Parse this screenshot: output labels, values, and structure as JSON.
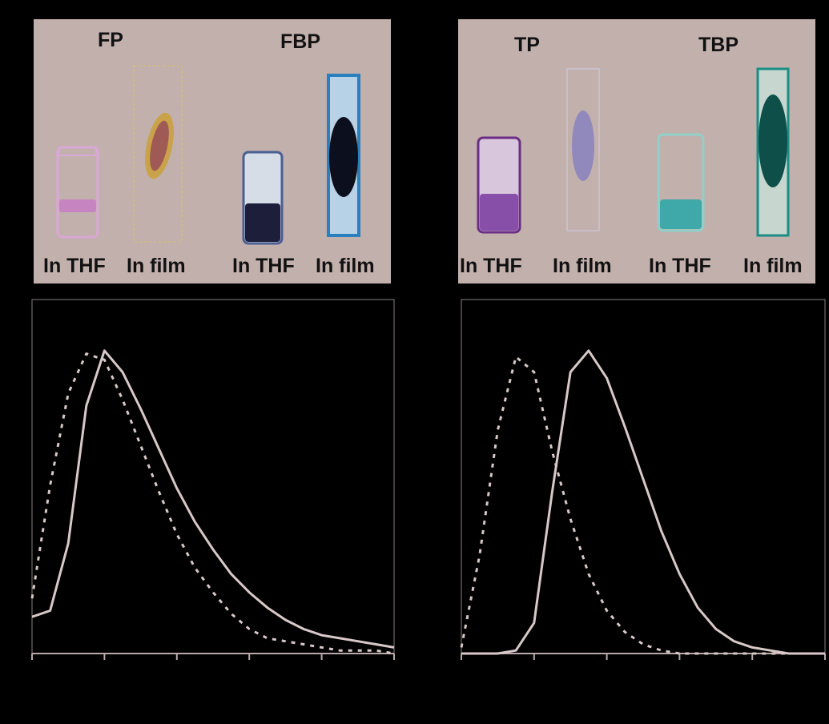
{
  "panels": [
    {
      "id": "left",
      "compounds": [
        "FP",
        "FBP"
      ],
      "captions": [
        "In THF",
        "In film",
        "In THF",
        "In film"
      ],
      "colors": {
        "vial_fp": "#c77bc4",
        "film_fp": "#c9a24a",
        "vial_fbp": "#1d1f3a",
        "film_fbp": "#2a7fbf"
      }
    },
    {
      "id": "right",
      "compounds": [
        "TP",
        "TBP"
      ],
      "captions": [
        "In THF",
        "In film",
        "In THF",
        "In film"
      ],
      "colors": {
        "vial_tp": "#7a3aa0",
        "film_tp": "#6a67c9",
        "vial_tbp": "#28a7a8",
        "film_tbp": "#0f4f4a"
      }
    }
  ],
  "chart_data": [
    {
      "type": "line",
      "title": "",
      "xlabel": "",
      "ylabel": "",
      "xlim": [
        0,
        100
      ],
      "ylim": [
        0,
        1
      ],
      "grid": false,
      "series": [
        {
          "style": "solid",
          "color": "#d8c8c8",
          "x": [
            0,
            5,
            10,
            15,
            20,
            25,
            30,
            35,
            40,
            45,
            50,
            55,
            60,
            65,
            70,
            75,
            80,
            85,
            90,
            95,
            100
          ],
          "y": [
            0.12,
            0.14,
            0.36,
            0.81,
            0.99,
            0.92,
            0.8,
            0.67,
            0.54,
            0.43,
            0.34,
            0.26,
            0.2,
            0.15,
            0.11,
            0.08,
            0.06,
            0.05,
            0.04,
            0.03,
            0.02
          ]
        },
        {
          "style": "dashed",
          "color": "#d8c8c8",
          "x": [
            0,
            5,
            10,
            15,
            20,
            25,
            30,
            35,
            40,
            45,
            50,
            55,
            60,
            65,
            70,
            75,
            80,
            85,
            90,
            95,
            100
          ],
          "y": [
            0.18,
            0.55,
            0.85,
            0.98,
            0.96,
            0.83,
            0.68,
            0.53,
            0.39,
            0.28,
            0.2,
            0.13,
            0.08,
            0.05,
            0.04,
            0.03,
            0.02,
            0.01,
            0.01,
            0.01,
            0.0
          ]
        }
      ]
    },
    {
      "type": "line",
      "title": "",
      "xlabel": "",
      "ylabel": "",
      "xlim": [
        0,
        100
      ],
      "ylim": [
        0,
        1
      ],
      "grid": false,
      "series": [
        {
          "style": "solid",
          "color": "#d8c8c8",
          "x": [
            0,
            5,
            10,
            15,
            20,
            25,
            30,
            35,
            40,
            45,
            50,
            55,
            60,
            65,
            70,
            75,
            80,
            85,
            90,
            95,
            100
          ],
          "y": [
            0.0,
            0.0,
            0.0,
            0.01,
            0.1,
            0.53,
            0.92,
            0.99,
            0.9,
            0.74,
            0.57,
            0.4,
            0.26,
            0.15,
            0.08,
            0.04,
            0.02,
            0.01,
            0.0,
            0.0,
            0.0
          ]
        },
        {
          "style": "dashed",
          "color": "#d8c8c8",
          "x": [
            0,
            5,
            10,
            15,
            20,
            25,
            30,
            35,
            40,
            45,
            50,
            55,
            60,
            65,
            70,
            75,
            80,
            85,
            90,
            95,
            100
          ],
          "y": [
            0.02,
            0.32,
            0.73,
            0.97,
            0.92,
            0.66,
            0.44,
            0.26,
            0.14,
            0.07,
            0.03,
            0.01,
            0.0,
            0.0,
            0.0,
            0.0,
            0.0,
            0.0,
            0.0,
            0.0,
            0.0
          ]
        }
      ]
    }
  ]
}
